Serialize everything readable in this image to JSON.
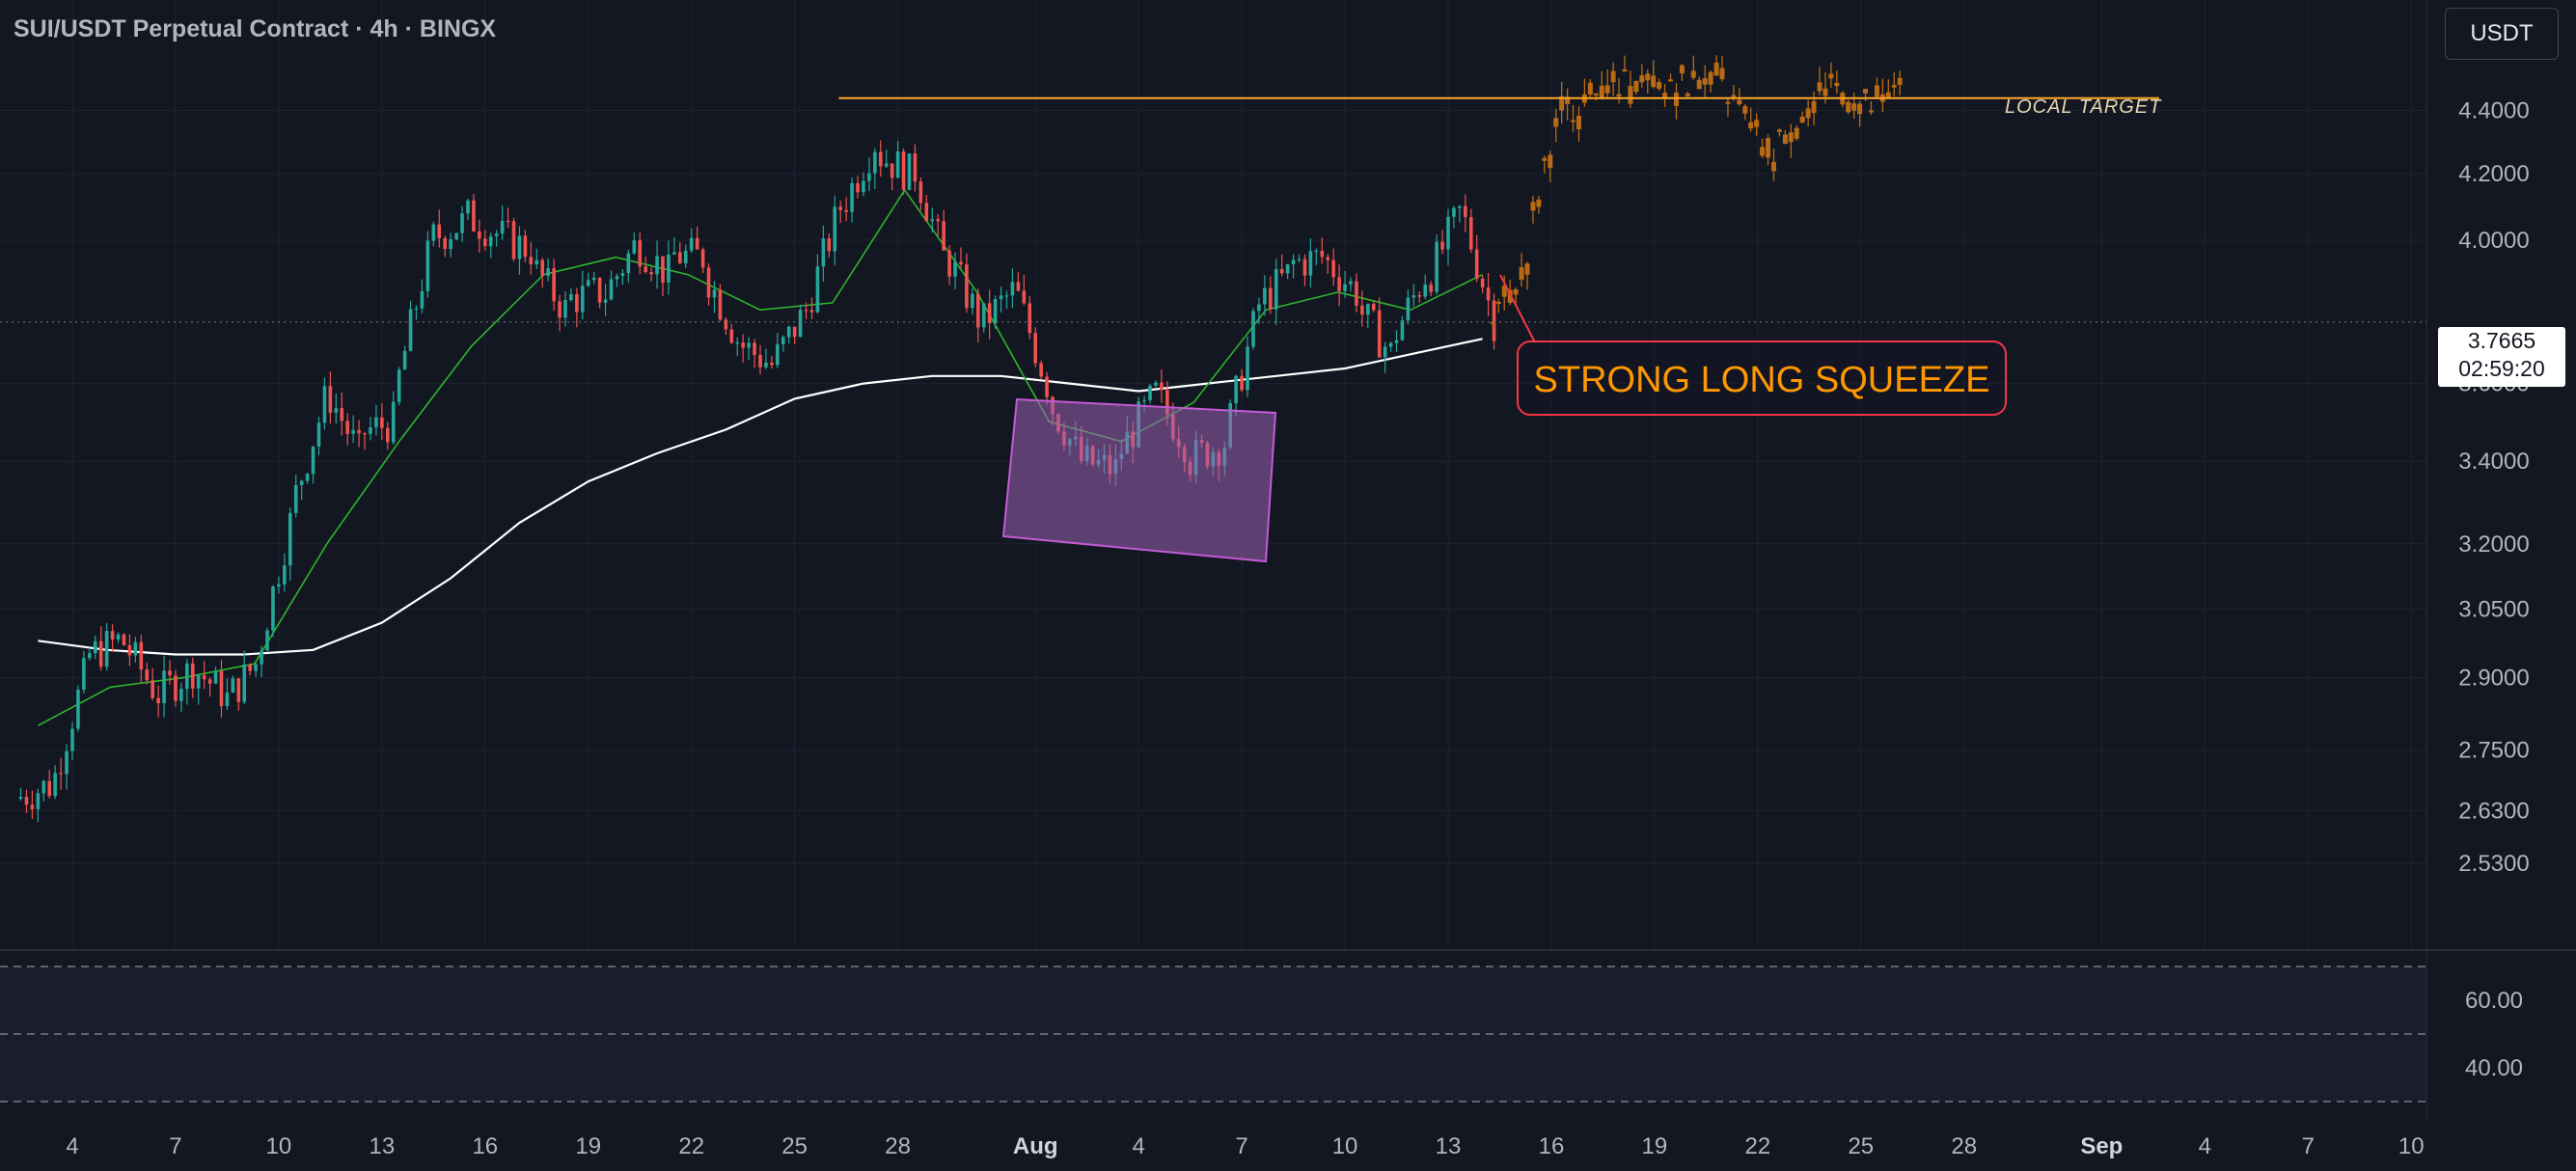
{
  "header": {
    "title": "SUI/USDT Perpetual Contract · 4h · BINGX"
  },
  "currency_button": {
    "label": "USDT"
  },
  "price_tag": {
    "price": "3.7665",
    "countdown": "02:59:20"
  },
  "annotations": {
    "squeeze": "STRONG LONG SQUEEZE",
    "target": "LOCAL TARGET"
  },
  "colors": {
    "background": "#131722",
    "up": "#26a69a",
    "down": "#ef5350",
    "projection": "#b86b14",
    "target_line": "#ffa726",
    "ma_long": "#ffffff",
    "ma_fast": "#2db52d",
    "box": "#9c61b5"
  },
  "chart_data": [
    {
      "type": "candlestick",
      "title": "SUI/USDT Perpetual Contract · 4h · BINGX",
      "scale": "log",
      "ylim": [
        2.53,
        4.5
      ],
      "grid": true,
      "y_ticks": [
        "4.4000",
        "4.2000",
        "4.0000",
        "3.6000",
        "3.4000",
        "3.2000",
        "3.0500",
        "2.9000",
        "2.7500",
        "2.6300",
        "2.5300"
      ],
      "x_ticks": [
        "4",
        "7",
        "10",
        "13",
        "16",
        "19",
        "22",
        "25",
        "28",
        "Aug",
        "4",
        "7",
        "10",
        "13",
        "16",
        "19",
        "22",
        "25",
        "28",
        "Sep",
        "4",
        "7",
        "10"
      ],
      "target_level": 4.44,
      "last_price": 3.7665,
      "close_series": [
        {
          "date": "Jul 3",
          "close": 2.68
        },
        {
          "date": "Jul 4",
          "close": 2.9
        },
        {
          "date": "Jul 5",
          "close": 2.98
        },
        {
          "date": "Jul 6",
          "close": 2.88
        },
        {
          "date": "Jul 7",
          "close": 2.91
        },
        {
          "date": "Jul 8",
          "close": 2.87
        },
        {
          "date": "Jul 9",
          "close": 2.93
        },
        {
          "date": "Jul 10",
          "close": 3.25
        },
        {
          "date": "Jul 11",
          "close": 3.55
        },
        {
          "date": "Jul 12",
          "close": 3.42
        },
        {
          "date": "Jul 13",
          "close": 3.5
        },
        {
          "date": "Jul 14",
          "close": 3.95
        },
        {
          "date": "Jul 15",
          "close": 4.05
        },
        {
          "date": "Jul 16",
          "close": 4.02
        },
        {
          "date": "Jul 17",
          "close": 3.97
        },
        {
          "date": "Jul 18",
          "close": 3.8
        },
        {
          "date": "Jul 19",
          "close": 3.85
        },
        {
          "date": "Jul 20",
          "close": 3.98
        },
        {
          "date": "Jul 21",
          "close": 3.9
        },
        {
          "date": "Jul 22",
          "close": 3.95
        },
        {
          "date": "Jul 23",
          "close": 3.72
        },
        {
          "date": "Jul 24",
          "close": 3.65
        },
        {
          "date": "Jul 25",
          "close": 3.8
        },
        {
          "date": "Jul 26",
          "close": 4.1
        },
        {
          "date": "Jul 27",
          "close": 4.3
        },
        {
          "date": "Jul 28",
          "close": 4.2
        },
        {
          "date": "Jul 29",
          "close": 3.95
        },
        {
          "date": "Jul 30",
          "close": 3.78
        },
        {
          "date": "Jul 31",
          "close": 3.85
        },
        {
          "date": "Aug 1",
          "close": 3.6
        },
        {
          "date": "Aug 2",
          "close": 3.4
        },
        {
          "date": "Aug 3",
          "close": 3.38
        },
        {
          "date": "Aug 4",
          "close": 3.55
        },
        {
          "date": "Aug 5",
          "close": 3.45
        },
        {
          "date": "Aug 6",
          "close": 3.44
        },
        {
          "date": "Aug 7",
          "close": 3.75
        },
        {
          "date": "Aug 8",
          "close": 3.9
        },
        {
          "date": "Aug 9",
          "close": 3.95
        },
        {
          "date": "Aug 10",
          "close": 3.85
        },
        {
          "date": "Aug 11",
          "close": 3.68
        },
        {
          "date": "Aug 12",
          "close": 3.9
        },
        {
          "date": "Aug 13",
          "close": 4.08
        },
        {
          "date": "Aug 14",
          "close": 3.77
        }
      ],
      "projection": {
        "start": "Aug 14",
        "closes": [
          3.9,
          4.4,
          4.45,
          4.48,
          4.44,
          4.5,
          4.45,
          4.25,
          4.38,
          4.48,
          4.4,
          4.47
        ]
      },
      "moving_averages": [
        {
          "color": "#ffffff",
          "values": [
            2.98,
            2.96,
            2.95,
            2.95,
            2.96,
            3.02,
            3.12,
            3.25,
            3.35,
            3.42,
            3.48,
            3.56,
            3.6,
            3.62,
            3.62,
            3.6,
            3.58,
            3.6,
            3.62,
            3.64,
            3.68,
            3.72
          ]
        },
        {
          "color": "#2db52d",
          "values": [
            2.8,
            2.88,
            2.9,
            2.93,
            3.2,
            3.45,
            3.7,
            3.9,
            3.95,
            3.9,
            3.8,
            3.82,
            4.15,
            3.85,
            3.5,
            3.45,
            3.55,
            3.8,
            3.85,
            3.8,
            3.9
          ]
        }
      ]
    },
    {
      "type": "line",
      "y_ticks": [
        "60.00",
        "40.00"
      ],
      "ylim": [
        30,
        70
      ],
      "bands": [
        70,
        50,
        30
      ]
    }
  ]
}
